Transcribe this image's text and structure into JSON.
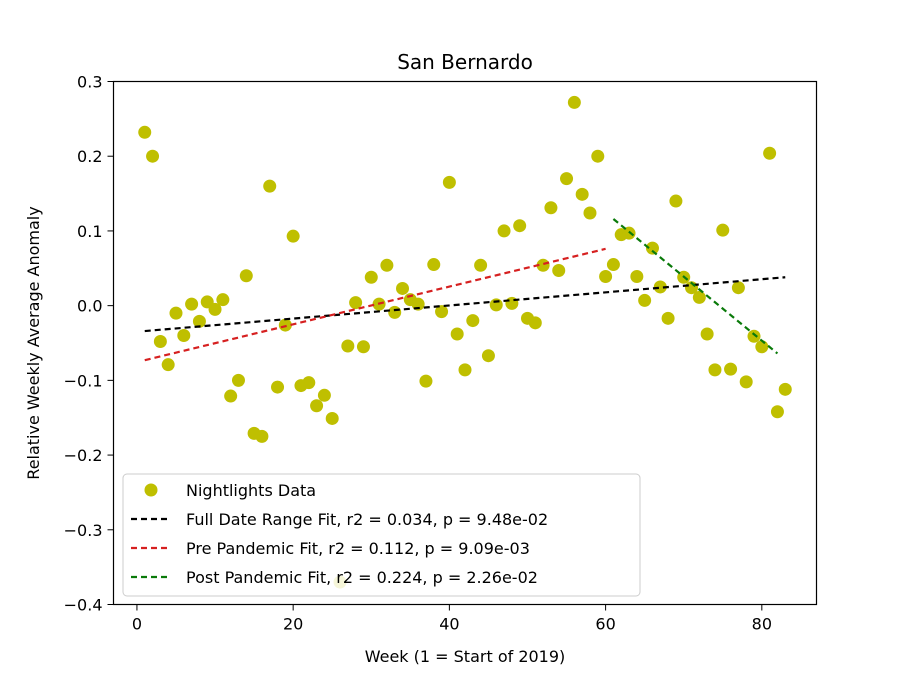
{
  "chart_data": {
    "type": "scatter",
    "title": "San Bernardo",
    "xlabel": "Week (1 = Start of 2019)",
    "ylabel": "Relative Weekly Average Anomaly",
    "xlim": [
      -3,
      87
    ],
    "ylim": [
      -0.4,
      0.3
    ],
    "xticks": [
      0,
      20,
      40,
      60,
      80
    ],
    "yticks": [
      0.3,
      0.2,
      0.1,
      0.0,
      -0.1,
      -0.2,
      -0.3,
      -0.4
    ],
    "xtick_labels": [
      "0",
      "20",
      "40",
      "60",
      "80"
    ],
    "ytick_labels": [
      "0.3",
      "0.2",
      "0.1",
      "0.0",
      "−0.1",
      "−0.2",
      "−0.3",
      "−0.4"
    ],
    "grid": false,
    "legend_position": "lower-left",
    "series": [
      {
        "name": "Nightlights Data",
        "kind": "scatter",
        "color": "#bfbf00",
        "x": [
          1,
          2,
          3,
          4,
          5,
          6,
          7,
          8,
          9,
          10,
          11,
          12,
          13,
          14,
          15,
          16,
          17,
          18,
          19,
          20,
          21,
          22,
          23,
          24,
          25,
          26,
          27,
          28,
          29,
          30,
          31,
          32,
          33,
          34,
          35,
          36,
          37,
          38,
          39,
          40,
          41,
          42,
          43,
          44,
          45,
          46,
          47,
          48,
          49,
          50,
          51,
          52,
          53,
          54,
          55,
          56,
          57,
          58,
          59,
          60,
          61,
          62,
          63,
          64,
          65,
          66,
          67,
          68,
          69,
          70,
          71,
          72,
          73,
          74,
          75,
          76,
          77,
          78,
          79,
          80,
          81,
          82,
          83
        ],
        "y": [
          0.232,
          0.2,
          -0.048,
          -0.079,
          -0.01,
          -0.04,
          0.002,
          -0.021,
          0.005,
          -0.005,
          0.008,
          -0.121,
          -0.1,
          0.04,
          -0.171,
          -0.175,
          0.16,
          -0.109,
          -0.026,
          0.093,
          -0.107,
          -0.103,
          -0.134,
          -0.12,
          -0.151,
          -0.37,
          -0.054,
          0.004,
          -0.055,
          0.038,
          0.002,
          0.054,
          -0.009,
          0.023,
          0.008,
          0.002,
          -0.101,
          0.055,
          -0.008,
          0.165,
          -0.038,
          -0.086,
          -0.02,
          0.054,
          -0.067,
          0.001,
          0.1,
          0.003,
          0.107,
          -0.017,
          -0.023,
          0.054,
          0.131,
          0.047,
          0.17,
          0.272,
          0.149,
          0.124,
          0.2,
          0.039,
          0.055,
          0.095,
          0.097,
          0.039,
          0.007,
          0.077,
          0.025,
          -0.017,
          0.14,
          0.038,
          0.024,
          0.011,
          -0.038,
          -0.086,
          0.101,
          -0.085,
          0.024,
          -0.102,
          -0.041,
          -0.055,
          0.204,
          -0.142,
          -0.112
        ]
      },
      {
        "name": "Full Date Range Fit, r2 = 0.034, p = 9.48e-02",
        "kind": "line",
        "color": "#000000",
        "x": [
          1,
          83
        ],
        "y": [
          -0.034,
          0.038
        ]
      },
      {
        "name": "Pre Pandemic Fit, r2 = 0.112, p = 9.09e-03",
        "kind": "line",
        "color": "#d62020",
        "x": [
          1,
          60
        ],
        "y": [
          -0.073,
          0.076
        ]
      },
      {
        "name": "Post Pandemic Fit, r2 = 0.224, p = 2.26e-02",
        "kind": "line",
        "color": "#0a7a0a",
        "x": [
          61,
          82
        ],
        "y": [
          0.116,
          -0.064
        ]
      }
    ]
  }
}
